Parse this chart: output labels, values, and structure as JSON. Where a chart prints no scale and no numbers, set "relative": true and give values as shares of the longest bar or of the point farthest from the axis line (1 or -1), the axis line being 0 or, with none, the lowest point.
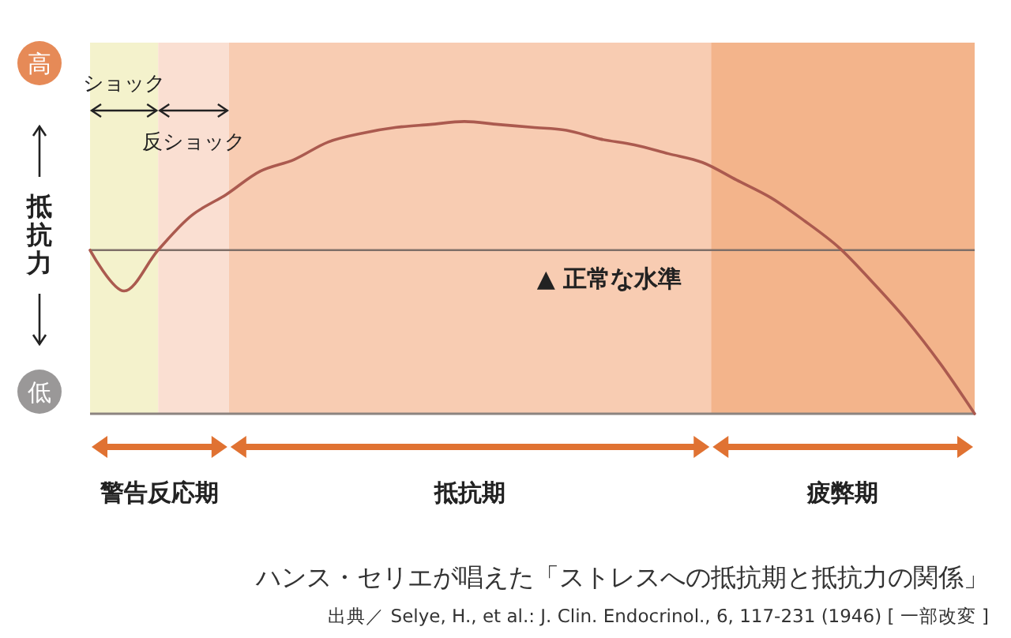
{
  "chart_data": {
    "type": "line",
    "relative": true,
    "title": "ハンス・セリエが唱えた「ストレスへの抵抗期と抵抗力の関係」",
    "ylabel": "抵抗力",
    "annotations": [
      "高",
      "低",
      "ショック",
      "反ショック",
      "警告反応期",
      "抵抗期",
      "疲弊期",
      "出典／ Selye, H., et al.: J. Clin. Endocrinol., 6, 117-231 (1946) [ 一部改変 ]"
    ],
    "categories": [
      null,
      null,
      null,
      null,
      null,
      null,
      null,
      null,
      null,
      null,
      null,
      null,
      null,
      null,
      null,
      null,
      null,
      null,
      null,
      null,
      null,
      null,
      null,
      null,
      null,
      null,
      null
    ],
    "series": [
      {
        "color": "#ab5a4f",
        "values": [
          0.56,
          0.42,
          0.56,
          0.68,
          0.75,
          0.83,
          0.87,
          0.93,
          0.96,
          0.98,
          0.99,
          1,
          0.99,
          0.98,
          0.97,
          0.94,
          0.92,
          0.89,
          0.86,
          0.8,
          0.74,
          0.66,
          0.57,
          0.45,
          0.32,
          0.17,
          0
        ]
      }
    ],
    "ref_lines": [
      {
        "axis": "y",
        "value": 0.56,
        "label": "▲ 正常な水準",
        "color": "#7f6f68"
      }
    ]
  }
}
